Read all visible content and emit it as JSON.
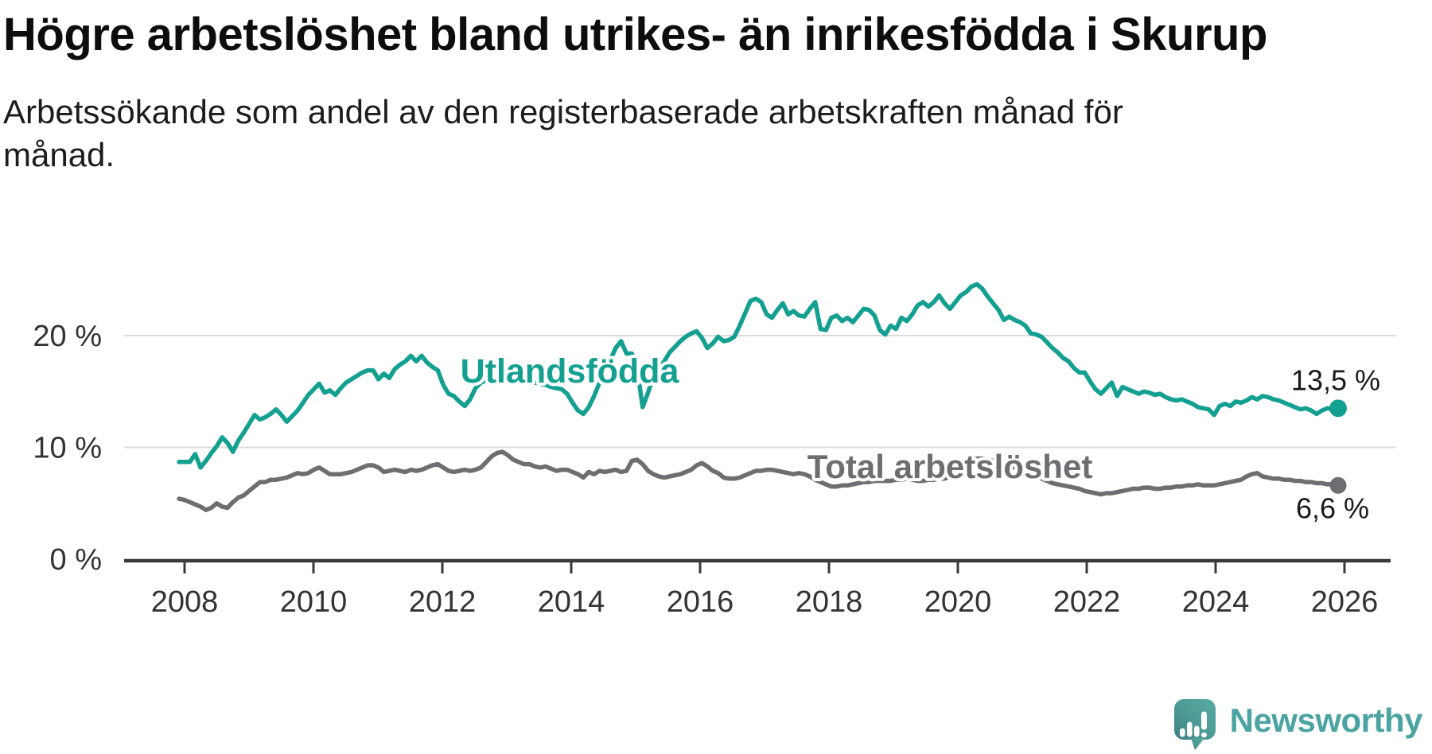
{
  "title": "Högre arbetslöshet bland utrikes- än inrikesfödda i Skurup",
  "subtitle": "Arbetssökande som andel av den registerbaserade arbetskraften månad för månad.",
  "branding": {
    "logo_text": "Newsworthy",
    "logo_icon": "speech-bubble-with-bar-chart-and-exclamation",
    "logo_color": "#4ba4a2"
  },
  "colors": {
    "series_foreign_born": "#14a091",
    "series_total": "#6e6d72",
    "gridline": "#dcdcdc",
    "axis": "#3a3a3a",
    "tick_label": "#333333",
    "end_value_label": "#1a1a1a",
    "background": "#ffffff"
  },
  "chart_data": {
    "type": "line",
    "frequency": "monthly",
    "x_start": "2008-01",
    "x_end": "2025-12",
    "x_tick_labels": [
      "2008",
      "2010",
      "2012",
      "2014",
      "2016",
      "2018",
      "2020",
      "2022",
      "2024",
      "2026"
    ],
    "y_tick_labels": [
      "0 %",
      "10 %",
      "20 %"
    ],
    "y_tick_values": [
      0,
      10,
      20
    ],
    "ylim": [
      0,
      28
    ],
    "grid": "horizontal",
    "legend_position": "inline-labels",
    "series": [
      {
        "name": "Utlandsfödda",
        "color": "#14a091",
        "end_label": "13,5 %",
        "end_value": 13.5,
        "values": [
          8.7,
          8.7,
          8.7,
          9.4,
          8.2,
          8.8,
          9.5,
          10.1,
          10.9,
          10.4,
          9.6,
          10.6,
          11.3,
          12.1,
          12.9,
          12.5,
          12.7,
          13.0,
          13.4,
          12.9,
          12.3,
          12.8,
          13.3,
          14.0,
          14.7,
          15.2,
          15.7,
          14.9,
          15.1,
          14.7,
          15.3,
          15.8,
          16.1,
          16.4,
          16.7,
          16.9,
          16.9,
          16.1,
          16.6,
          16.2,
          17.0,
          17.4,
          17.7,
          18.2,
          17.7,
          18.2,
          17.6,
          17.2,
          16.9,
          15.6,
          14.8,
          14.6,
          14.1,
          13.7,
          14.3,
          15.3,
          15.8,
          16.0,
          16.2,
          16.4,
          16.5,
          16.8,
          16.6,
          16.4,
          16.2,
          16.0,
          15.8,
          15.7,
          15.6,
          15.4,
          15.3,
          15.2,
          14.8,
          14.0,
          13.3,
          13.0,
          13.6,
          14.6,
          15.8,
          17.0,
          17.8,
          18.9,
          19.5,
          18.4,
          18.4,
          17.0,
          13.6,
          14.9,
          16.4,
          17.0,
          17.7,
          18.5,
          19.0,
          19.5,
          19.9,
          20.2,
          20.4,
          19.8,
          18.9,
          19.3,
          19.9,
          19.5,
          19.6,
          19.9,
          20.9,
          22.0,
          23.1,
          23.3,
          23.0,
          21.9,
          21.6,
          22.3,
          22.9,
          21.9,
          22.2,
          21.8,
          21.7,
          22.4,
          23.0,
          20.6,
          20.5,
          21.6,
          21.8,
          21.3,
          21.6,
          21.2,
          21.8,
          22.4,
          22.3,
          21.8,
          20.5,
          20.1,
          20.9,
          20.6,
          21.6,
          21.3,
          21.9,
          22.7,
          23.0,
          22.6,
          23.0,
          23.6,
          22.9,
          22.4,
          23.0,
          23.6,
          23.9,
          24.4,
          24.6,
          24.2,
          23.5,
          22.9,
          22.3,
          21.4,
          21.7,
          21.4,
          21.2,
          20.9,
          20.2,
          20.1,
          19.9,
          19.4,
          18.9,
          18.5,
          18.0,
          17.7,
          17.1,
          16.7,
          16.7,
          15.9,
          15.2,
          14.8,
          15.3,
          15.8,
          14.6,
          15.4,
          15.2,
          15.0,
          14.8,
          15.0,
          14.9,
          14.7,
          14.8,
          14.5,
          14.3,
          14.2,
          14.3,
          14.1,
          13.9,
          13.6,
          13.5,
          13.4,
          12.9,
          13.7,
          13.9,
          13.7,
          14.1,
          14.0,
          14.2,
          14.5,
          14.3,
          14.6,
          14.5,
          14.3,
          14.2,
          14.0,
          13.8,
          13.6,
          13.4,
          13.5,
          13.3,
          13.0,
          13.3,
          13.5,
          13.4,
          13.5
        ]
      },
      {
        "name": "Total arbetslöshet",
        "color": "#6e6d72",
        "end_label": "6,6 %",
        "end_value": 6.6,
        "values": [
          5.4,
          5.3,
          5.1,
          4.9,
          4.7,
          4.4,
          4.6,
          5.0,
          4.7,
          4.6,
          5.1,
          5.5,
          5.7,
          6.1,
          6.5,
          6.9,
          6.9,
          7.1,
          7.1,
          7.2,
          7.3,
          7.5,
          7.7,
          7.6,
          7.7,
          8.0,
          8.2,
          7.9,
          7.6,
          7.6,
          7.6,
          7.7,
          7.8,
          8.0,
          8.2,
          8.4,
          8.4,
          8.2,
          7.8,
          7.9,
          8.0,
          7.9,
          7.8,
          8.0,
          7.9,
          8.0,
          8.2,
          8.4,
          8.5,
          8.2,
          7.9,
          7.8,
          7.9,
          8.0,
          7.9,
          8.0,
          8.2,
          8.7,
          9.2,
          9.5,
          9.6,
          9.3,
          8.9,
          8.7,
          8.5,
          8.5,
          8.3,
          8.2,
          8.3,
          8.1,
          7.9,
          8.0,
          8.0,
          7.8,
          7.6,
          7.3,
          7.8,
          7.6,
          7.9,
          7.8,
          7.9,
          8.0,
          7.8,
          7.9,
          8.8,
          8.9,
          8.5,
          7.9,
          7.6,
          7.4,
          7.3,
          7.4,
          7.5,
          7.6,
          7.8,
          8.0,
          8.4,
          8.6,
          8.3,
          7.9,
          7.7,
          7.3,
          7.2,
          7.2,
          7.3,
          7.5,
          7.7,
          7.9,
          7.9,
          8.0,
          8.0,
          7.9,
          7.8,
          7.7,
          7.6,
          7.7,
          7.6,
          7.4,
          7.1,
          6.9,
          6.7,
          6.5,
          6.5,
          6.6,
          6.6,
          6.7,
          6.8,
          6.9,
          6.9,
          7.0,
          7.0,
          7.0,
          7.0,
          7.1,
          7.1,
          7.2,
          7.1,
          7.0,
          7.0,
          7.1,
          7.1,
          7.2,
          7.2,
          7.4,
          7.7,
          8.1,
          8.5,
          8.8,
          9.0,
          9.0,
          8.9,
          8.8,
          8.7,
          8.5,
          8.4,
          8.2,
          8.0,
          7.8,
          7.6,
          7.4,
          7.2,
          7.0,
          6.8,
          6.7,
          6.6,
          6.5,
          6.4,
          6.3,
          6.1,
          6.0,
          5.9,
          5.8,
          5.9,
          5.9,
          6.0,
          6.1,
          6.2,
          6.3,
          6.3,
          6.4,
          6.4,
          6.3,
          6.3,
          6.4,
          6.4,
          6.5,
          6.5,
          6.6,
          6.6,
          6.7,
          6.6,
          6.6,
          6.6,
          6.7,
          6.8,
          6.9,
          7.0,
          7.1,
          7.4,
          7.6,
          7.7,
          7.4,
          7.3,
          7.2,
          7.2,
          7.1,
          7.1,
          7.0,
          7.0,
          6.9,
          6.9,
          6.8,
          6.8,
          6.7,
          6.7,
          6.6
        ]
      }
    ]
  }
}
